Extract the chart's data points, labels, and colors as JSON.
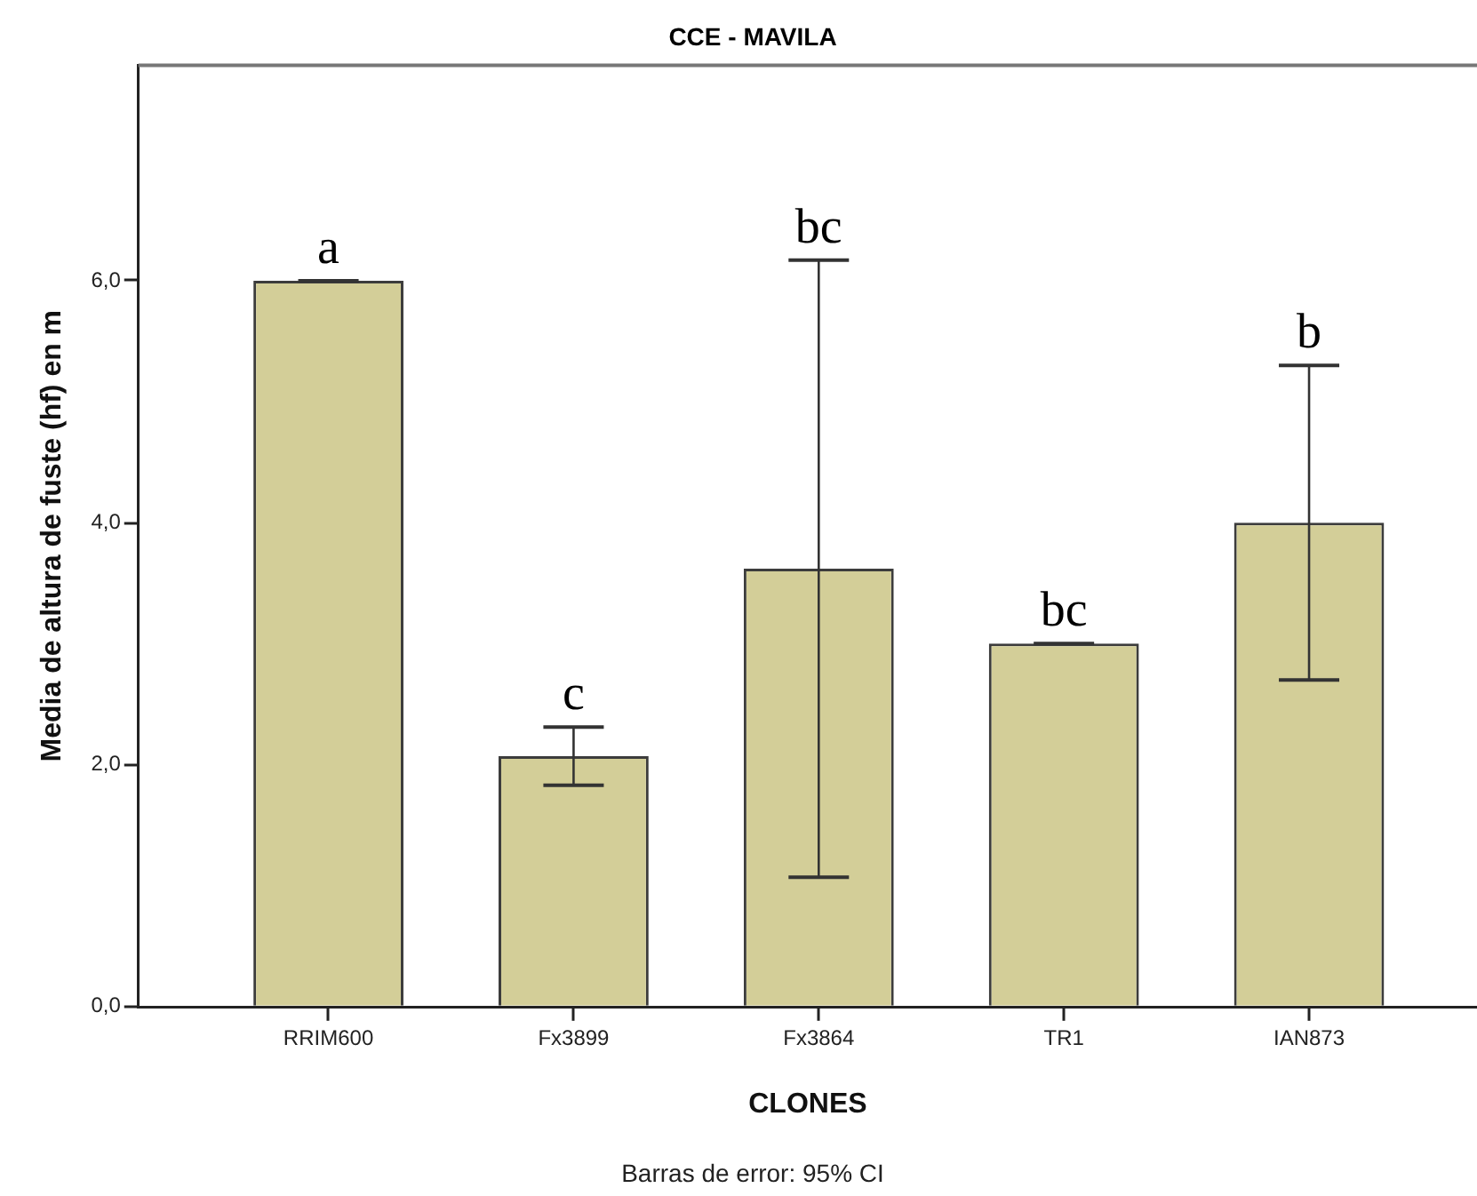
{
  "chart_data": {
    "type": "bar",
    "title": "CCE - MAVILA",
    "xlabel": "CLONES",
    "ylabel": "Media de altura de fuste (hf) en m",
    "categories": [
      "RRIM600",
      "Fx3899",
      "Fx3864",
      "TR1",
      "IAN873"
    ],
    "values": [
      6.0,
      2.07,
      3.62,
      3.0,
      4.0
    ],
    "errors": [
      0,
      0.24,
      2.55,
      0,
      1.3
    ],
    "color": "#d3ce98",
    "ylim": [
      0,
      7.78
    ],
    "yticks": [
      {
        "value": 0,
        "label": "0,0"
      },
      {
        "value": 2,
        "label": "2,0"
      },
      {
        "value": 4,
        "label": "4,0"
      },
      {
        "value": 6,
        "label": "6,0"
      }
    ],
    "annotations": [
      {
        "text": "a",
        "x": "RRIM600",
        "y": 6.0
      },
      {
        "text": "c",
        "x": "Fx3899",
        "y": 2.31
      },
      {
        "text": "bc",
        "x": "Fx3864",
        "y": 6.17
      },
      {
        "text": "bc",
        "x": "TR1",
        "y": 3.0
      },
      {
        "text": "b",
        "x": "IAN873",
        "y": 5.3
      },
      "Barras de error: 95% CI"
    ]
  }
}
